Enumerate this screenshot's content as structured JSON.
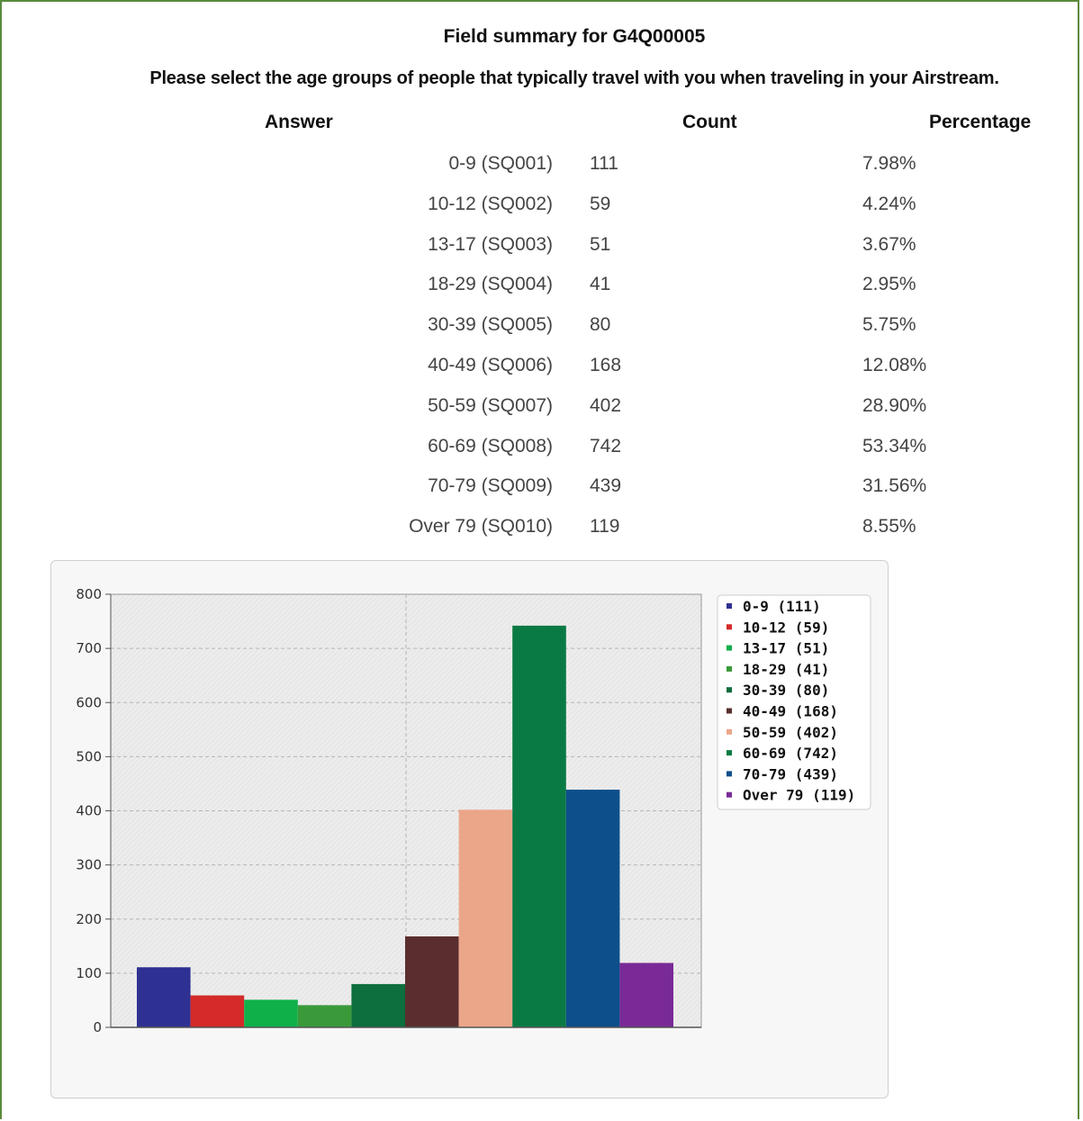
{
  "header": {
    "title": "Field summary for G4Q00005",
    "question": "Please select the age groups of people that typically travel with you when traveling in your Airstream."
  },
  "table": {
    "columns": [
      "Answer",
      "Count",
      "Percentage"
    ],
    "rows": [
      {
        "answer": "0-9 (SQ001)",
        "count": "111",
        "percentage": "7.98%"
      },
      {
        "answer": "10-12 (SQ002)",
        "count": "59",
        "percentage": "4.24%"
      },
      {
        "answer": "13-17 (SQ003)",
        "count": "51",
        "percentage": "3.67%"
      },
      {
        "answer": "18-29 (SQ004)",
        "count": "41",
        "percentage": "2.95%"
      },
      {
        "answer": "30-39 (SQ005)",
        "count": "80",
        "percentage": "5.75%"
      },
      {
        "answer": "40-49 (SQ006)",
        "count": "168",
        "percentage": "12.08%"
      },
      {
        "answer": "50-59 (SQ007)",
        "count": "402",
        "percentage": "28.90%"
      },
      {
        "answer": "60-69 (SQ008)",
        "count": "742",
        "percentage": "53.34%"
      },
      {
        "answer": "70-79 (SQ009)",
        "count": "439",
        "percentage": "31.56%"
      },
      {
        "answer": "Over 79 (SQ010)",
        "count": "119",
        "percentage": "8.55%"
      }
    ]
  },
  "chart_data": {
    "type": "bar",
    "title": "",
    "xlabel": "",
    "ylabel": "",
    "ylim": [
      0,
      800
    ],
    "yticks": [
      "0",
      "100",
      "200",
      "300",
      "400",
      "500",
      "600",
      "700",
      "800"
    ],
    "categories": [
      "0-9",
      "10-12",
      "13-17",
      "18-29",
      "30-39",
      "40-49",
      "50-59",
      "60-69",
      "70-79",
      "Over 79"
    ],
    "values": [
      111,
      59,
      51,
      41,
      80,
      168,
      402,
      742,
      439,
      119
    ],
    "colors": [
      "#2e3192",
      "#d42a2a",
      "#0fb04a",
      "#3a9a3a",
      "#0d6e3e",
      "#5a2e2e",
      "#eba68a",
      "#0a7a44",
      "#0d4f8b",
      "#7a2a96"
    ],
    "legend": {
      "placement": "top-right",
      "entries": [
        "0-9 (111)",
        "10-12 (59)",
        "13-17 (51)",
        "18-29 (41)",
        "30-39 (80)",
        "40-49 (168)",
        "50-59 (402)",
        "60-69 (742)",
        "70-79 (439)",
        "Over 79 (119)"
      ]
    },
    "grid": true
  }
}
